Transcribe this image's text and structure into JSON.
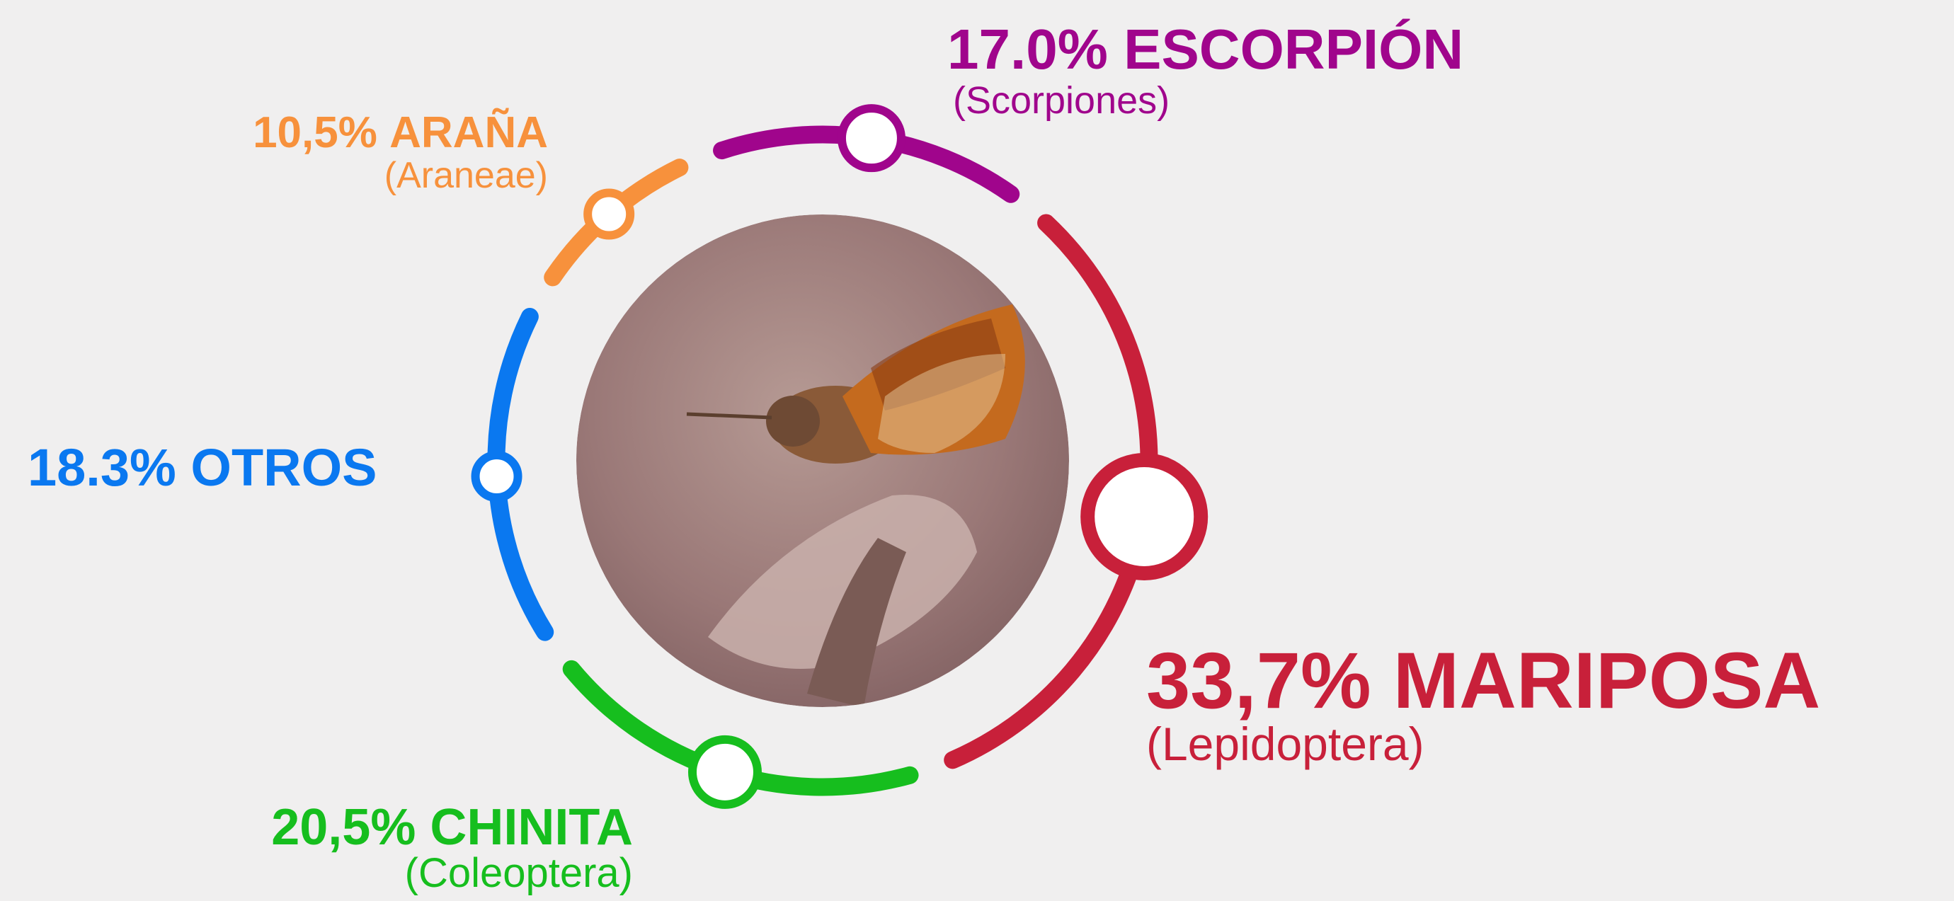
{
  "chart_data": {
    "type": "donut",
    "categories": [
      "ESCORPIÓN",
      "MARIPOSA",
      "CHINITA",
      "OTROS",
      "ARAÑA"
    ],
    "orders": [
      "(Scorpiones)",
      "(Lepidoptera)",
      "(Coleoptera)",
      null,
      "(Araneae)"
    ],
    "values": [
      17.0,
      33.7,
      20.5,
      18.3,
      10.5
    ],
    "value_labels": [
      "17.0%",
      "33,7%",
      "20,5%",
      "18.3%",
      "10,5%"
    ],
    "colors": [
      "#a0058c",
      "#c8203a",
      "#16be1e",
      "#0a78f0",
      "#f7913c"
    ]
  }
}
